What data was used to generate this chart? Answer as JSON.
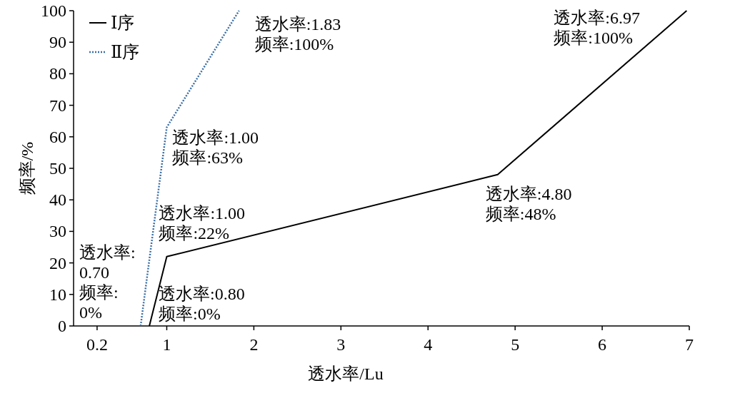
{
  "chart_data": {
    "type": "line",
    "xlabel": "透水率/Lu",
    "ylabel": "频率/%",
    "xlim": [
      -0.07,
      7
    ],
    "ylim": [
      0,
      100
    ],
    "xticks": [
      0.2,
      1,
      2,
      3,
      4,
      5,
      6,
      7
    ],
    "yticks": [
      0,
      10,
      20,
      30,
      40,
      50,
      60,
      70,
      80,
      90,
      100
    ],
    "series": [
      {
        "name": "Ⅰ序",
        "color": "#000000",
        "line_style": "solid",
        "x": [
          0.8,
          1.0,
          4.8,
          6.97
        ],
        "values": [
          0,
          22,
          48,
          100
        ]
      },
      {
        "name": "Ⅱ序",
        "color": "#3a6ea5",
        "line_style": "dotted",
        "x": [
          0.7,
          1.0,
          1.83
        ],
        "values": [
          0,
          63,
          100
        ]
      }
    ],
    "legend": "top left",
    "grid": false,
    "marker": "none",
    "annotations": [
      {
        "text": "透水率:1.83\n频率:100%",
        "x": 1.83,
        "y": 100
      },
      {
        "text": "透水率:1.00\n频率:63%",
        "x": 1.0,
        "y": 63
      },
      {
        "text": "透水率:1.00\n频率:22%",
        "x": 1.0,
        "y": 22
      },
      {
        "text": "透水率:0.80\n频率:0%",
        "x": 0.8,
        "y": 0
      },
      {
        "text": "透水率:\n0.70\n频率:\n0%",
        "x": 0.7,
        "y": 0
      },
      {
        "text": "透水率:4.80\n频率:48%",
        "x": 4.8,
        "y": 48
      },
      {
        "text": "透水率:6.97\n频率:100%",
        "x": 6.97,
        "y": 100
      }
    ]
  }
}
